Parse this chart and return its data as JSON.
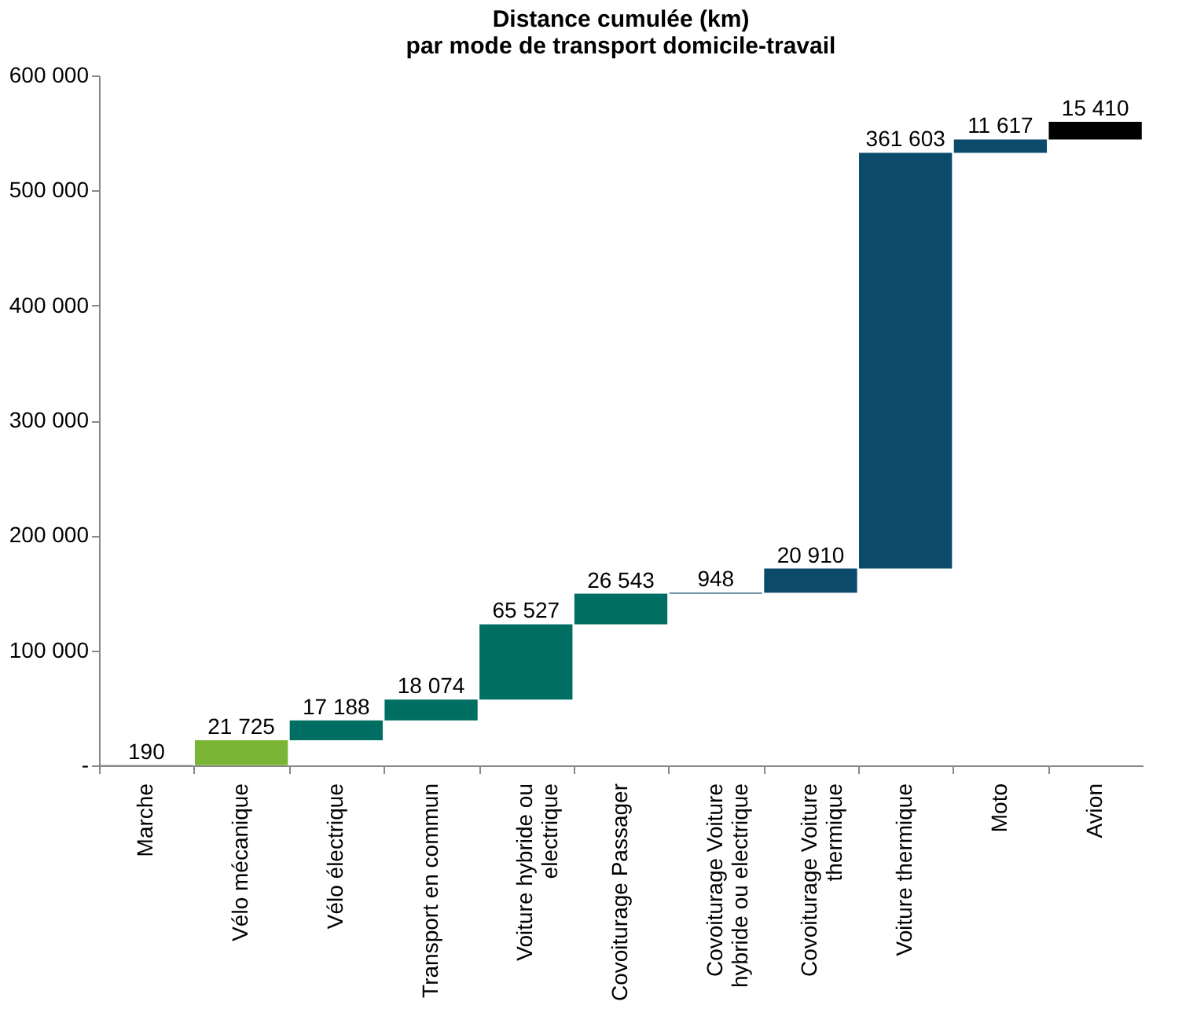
{
  "chart_data": {
    "type": "bar",
    "title": "Distance cumulée (km)\npar mode de transport domicile-travail",
    "categories": [
      "Marche",
      "Vélo mécanique",
      "Vélo électrique",
      "Transport en commun",
      "Voiture hybride ou electrique",
      "Covoiturage Passager",
      "Covoiturage Voiture hybride ou electrique",
      "Covoiturage Voiture thermique",
      "Voiture thermique",
      "Moto",
      "Avion"
    ],
    "values": [
      190,
      21725,
      17188,
      18074,
      65527,
      26543,
      948,
      20910,
      361603,
      11617,
      15410
    ],
    "base": [
      0,
      190,
      21915,
      39103,
      57177,
      122704,
      149247,
      150195,
      171105,
      532708,
      544325
    ],
    "colors": [
      "#0b4a6a",
      "#7ab535",
      "#006e63",
      "#006e63",
      "#006e63",
      "#006e63",
      "#0b4a6a",
      "#0b4a6a",
      "#0b4a6a",
      "#0b4a6a",
      "#000000"
    ],
    "value_labels": [
      "190",
      "21 725",
      "17 188",
      "18 074",
      "65 527",
      "26 543",
      "948",
      "20 910",
      "361 603",
      "11 617",
      "15 410"
    ],
    "ylim": [
      0,
      600000
    ],
    "yticks": [
      {
        "value": 0,
        "label": "-"
      },
      {
        "value": 100000,
        "label": "100 000"
      },
      {
        "value": 200000,
        "label": "200 000"
      },
      {
        "value": 300000,
        "label": "300 000"
      },
      {
        "value": 400000,
        "label": "400 000"
      },
      {
        "value": 500000,
        "label": "500 000"
      },
      {
        "value": 600000,
        "label": "600 000"
      }
    ],
    "grid": false
  }
}
